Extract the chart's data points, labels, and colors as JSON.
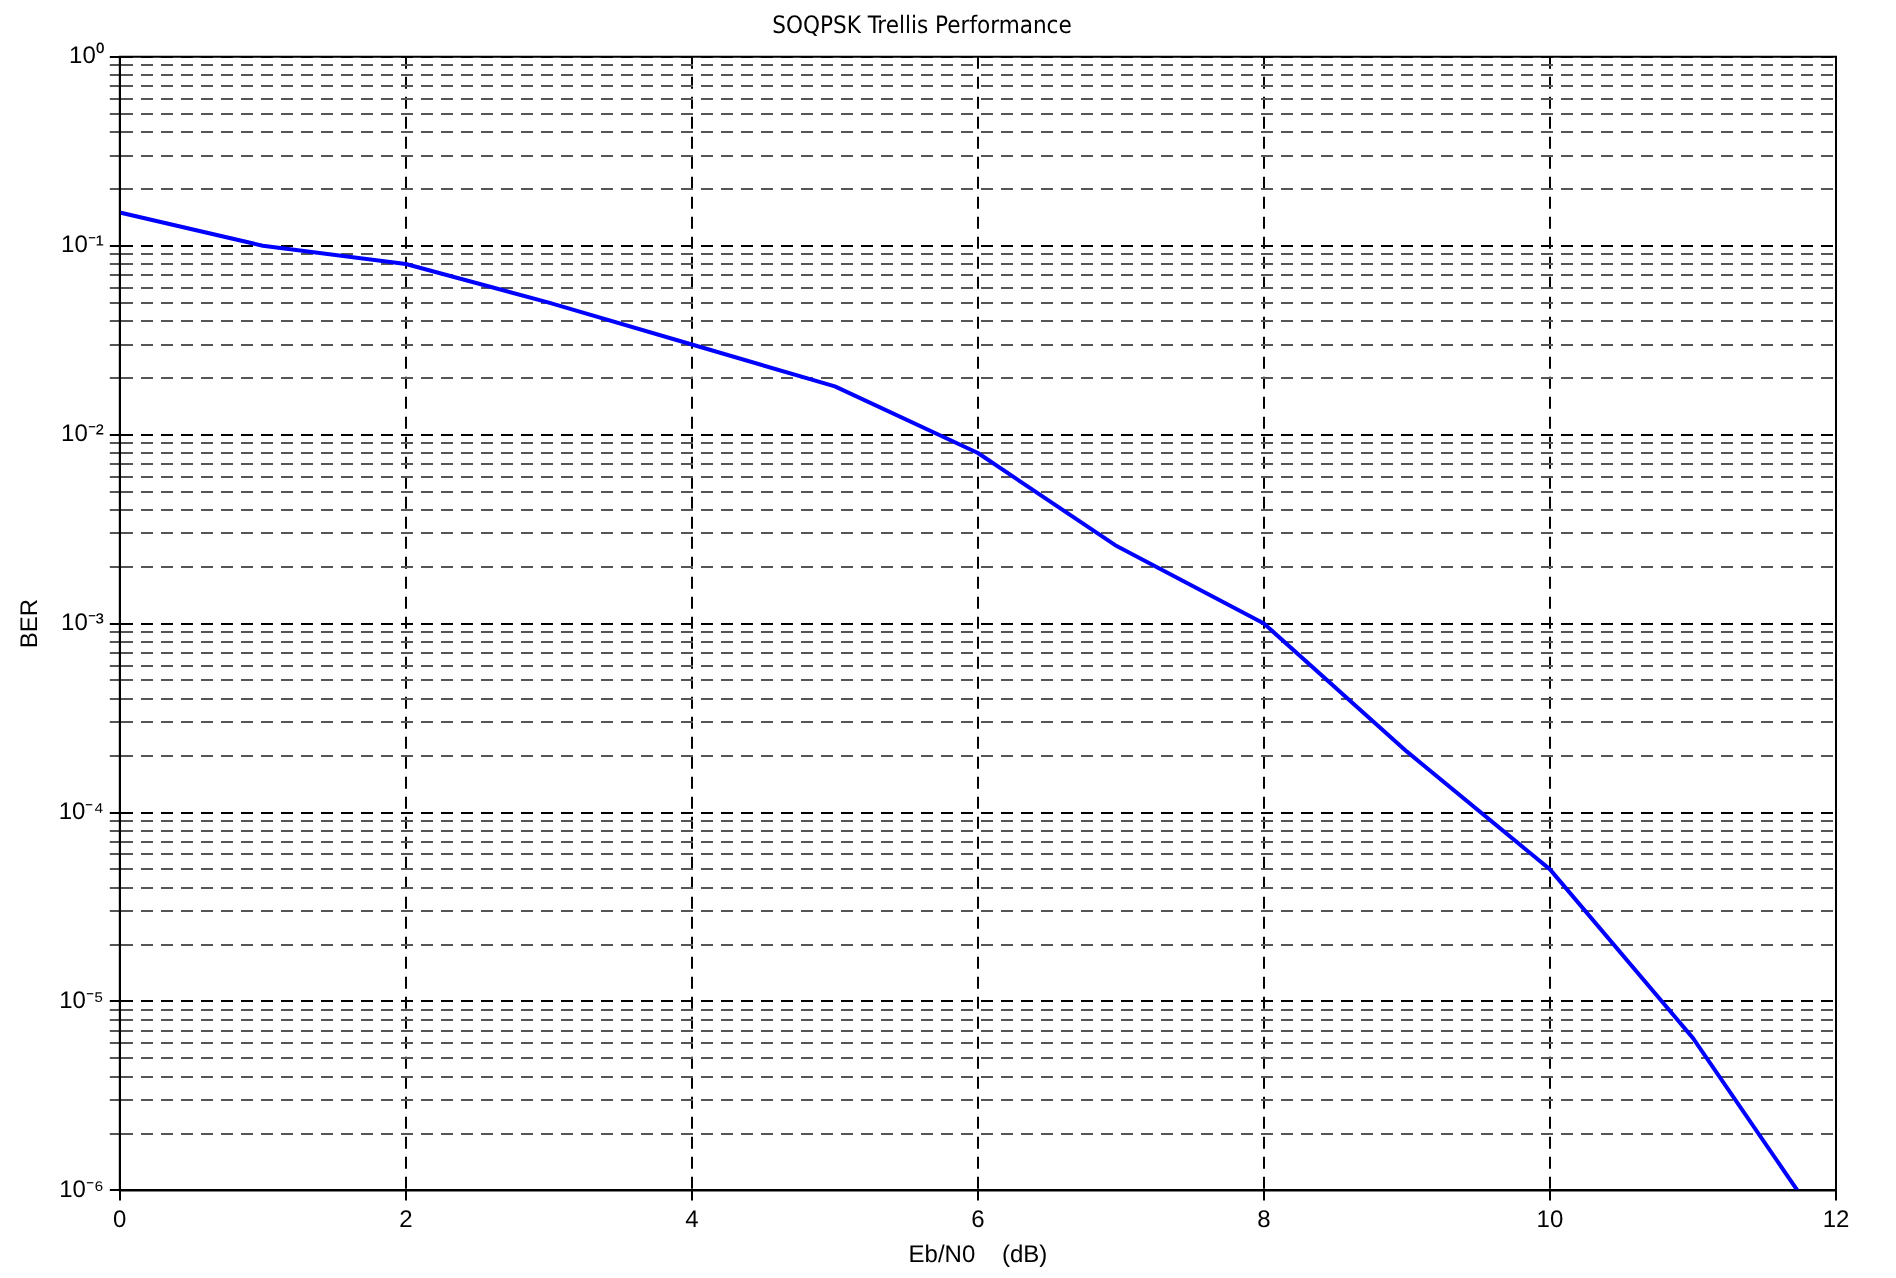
{
  "chart_data": {
    "type": "line",
    "title": "SOQPSK Trellis Performance",
    "xlabel": "Eb/N0    (dB)",
    "ylabel": "BER",
    "log": "y",
    "grid": true,
    "legend": false,
    "marker": "none",
    "line_style": "solid",
    "xlim": [
      0,
      12
    ],
    "xticks": [
      0,
      2,
      4,
      6,
      8,
      10,
      12
    ],
    "ylim": [
      1e-06,
      1
    ],
    "yticks": [
      {
        "value": 1e-06,
        "label": "10⁻⁶"
      },
      {
        "value": 2e-06,
        "label": null
      },
      {
        "value": 3e-06,
        "label": null
      },
      {
        "value": 4e-06,
        "label": null
      },
      {
        "value": 5e-06,
        "label": null
      },
      {
        "value": 6e-06,
        "label": null
      },
      {
        "value": 7e-06,
        "label": null
      },
      {
        "value": 8e-06,
        "label": null
      },
      {
        "value": 9e-06,
        "label": null
      },
      {
        "value": 1e-05,
        "label": "10⁻⁵"
      },
      {
        "value": 2e-05,
        "label": null
      },
      {
        "value": 3e-05,
        "label": null
      },
      {
        "value": 4e-05,
        "label": null
      },
      {
        "value": 5e-05,
        "label": null
      },
      {
        "value": 6e-05,
        "label": null
      },
      {
        "value": 7e-05,
        "label": null
      },
      {
        "value": 8e-05,
        "label": null
      },
      {
        "value": 9e-05,
        "label": null
      },
      {
        "value": 0.0001,
        "label": "10⁻⁴"
      },
      {
        "value": 0.0002,
        "label": null
      },
      {
        "value": 0.0003,
        "label": null
      },
      {
        "value": 0.0004,
        "label": null
      },
      {
        "value": 0.0005,
        "label": null
      },
      {
        "value": 0.0006,
        "label": null
      },
      {
        "value": 0.0007,
        "label": null
      },
      {
        "value": 0.0008,
        "label": null
      },
      {
        "value": 0.0009,
        "label": null
      },
      {
        "value": 0.001,
        "label": "10⁻³"
      },
      {
        "value": 0.002,
        "label": null
      },
      {
        "value": 0.003,
        "label": null
      },
      {
        "value": 0.004,
        "label": null
      },
      {
        "value": 0.005,
        "label": null
      },
      {
        "value": 0.006,
        "label": null
      },
      {
        "value": 0.007,
        "label": null
      },
      {
        "value": 0.008,
        "label": null
      },
      {
        "value": 0.009,
        "label": null
      },
      {
        "value": 0.01,
        "label": "10⁻²"
      },
      {
        "value": 0.02,
        "label": null
      },
      {
        "value": 0.03,
        "label": null
      },
      {
        "value": 0.04,
        "label": null
      },
      {
        "value": 0.05,
        "label": null
      },
      {
        "value": 0.06,
        "label": null
      },
      {
        "value": 0.07,
        "label": null
      },
      {
        "value": 0.08,
        "label": null
      },
      {
        "value": 0.09,
        "label": null
      },
      {
        "value": 0.1,
        "label": "10⁻¹"
      },
      {
        "value": 0.2,
        "label": null
      },
      {
        "value": 0.3,
        "label": null
      },
      {
        "value": 0.4,
        "label": null
      },
      {
        "value": 0.5,
        "label": null
      },
      {
        "value": 0.6,
        "label": null
      },
      {
        "value": 0.7,
        "label": null
      },
      {
        "value": 0.8,
        "label": null
      },
      {
        "value": 0.9,
        "label": null
      },
      {
        "value": 1,
        "label": "10⁰"
      }
    ],
    "series": [
      {
        "color": "#0000ff",
        "x": [
          0,
          1,
          2,
          3,
          4,
          5,
          6,
          6.96,
          8,
          9,
          10,
          11,
          11.73
        ],
        "values": [
          0.15,
          0.1,
          0.08,
          0.05,
          0.03,
          0.018,
          0.008,
          0.0026,
          0.001,
          0.00021,
          5e-05,
          6.4e-06,
          1e-06
        ]
      }
    ]
  }
}
